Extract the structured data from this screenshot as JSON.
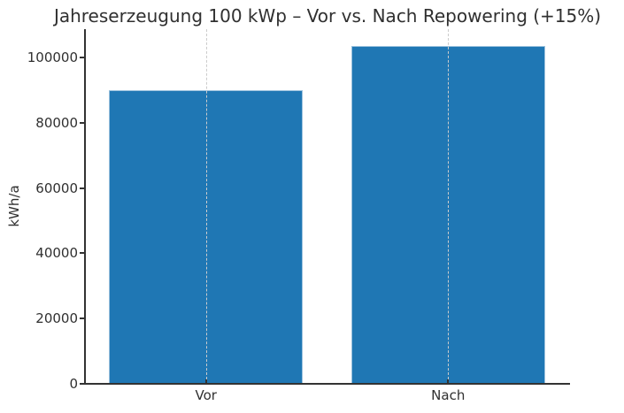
{
  "chart_data": {
    "type": "bar",
    "title": "Jahreserzeugung 100 kWp – Vor vs. Nach Repowering (+15%)",
    "categories": [
      "Vor",
      "Nach"
    ],
    "values": [
      90000,
      103500
    ],
    "xlabel": "",
    "ylabel": "kWh/a",
    "ylim": [
      0,
      108675
    ],
    "yticks": [
      0,
      20000,
      40000,
      60000,
      80000,
      100000
    ],
    "bar_width_fraction": 0.8,
    "grid": "vertical-dashed-at-category-centers",
    "legend_position": "none",
    "bar_color": "#1f77b4",
    "bar_edge_color": "rgba(255,255,255,0.55)",
    "grid_color": "#cccccc",
    "spine_color": "#333333",
    "tick_color": "#333333",
    "text_color": "#303030"
  }
}
